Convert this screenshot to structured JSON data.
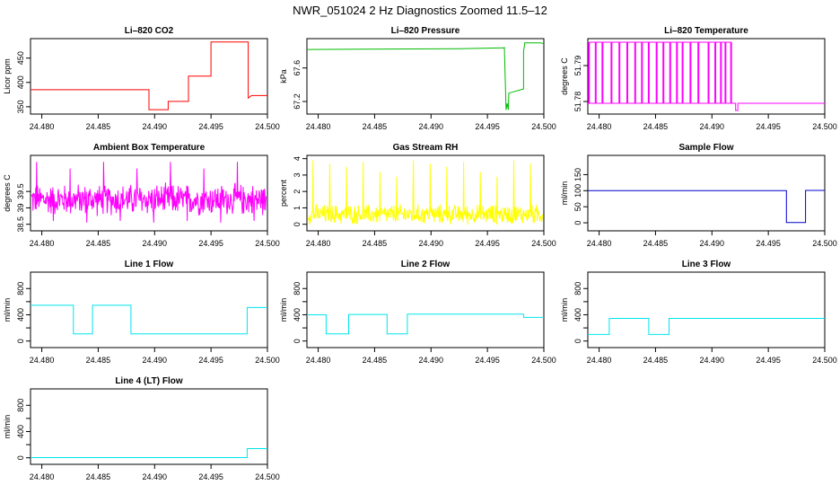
{
  "figure_title": "NWR_051024  2 Hz Diagnostics Zoomed 11.5–12",
  "chart_data": [
    {
      "type": "line",
      "title": "Li–820 CO2",
      "ylabel": "Licor ppm",
      "color": "#ff0000",
      "xlim": [
        24.479,
        24.5
      ],
      "ylim": [
        335,
        490
      ],
      "xticks": [
        24.48,
        24.485,
        24.49,
        24.495,
        24.5
      ],
      "yticks": [
        350,
        400,
        450
      ],
      "x": [
        24.479,
        24.4895,
        24.4895,
        24.4912,
        24.4912,
        24.493,
        24.493,
        24.495,
        24.495,
        24.4983,
        24.4983,
        24.4986,
        24.5
      ],
      "y": [
        385,
        385,
        344,
        344,
        361,
        361,
        413,
        413,
        483,
        483,
        368,
        373,
        373
      ]
    },
    {
      "type": "line",
      "title": "Li–820 Pressure",
      "ylabel": "kPa",
      "color": "#00bb00",
      "xlim": [
        24.479,
        24.5
      ],
      "ylim": [
        67.05,
        67.95
      ],
      "xticks": [
        24.48,
        24.485,
        24.49,
        24.495,
        24.5
      ],
      "yticks": [
        67.2,
        67.6
      ],
      "ytick_labels": [
        "67.2",
        "67.6"
      ],
      "x": [
        24.479,
        24.4925,
        24.4965,
        24.4965,
        24.49665,
        24.49675,
        24.49685,
        24.4969,
        24.4982,
        24.4982,
        24.4983,
        24.4983,
        24.4997,
        24.5
      ],
      "y": [
        67.82,
        67.83,
        67.84,
        67.85,
        67.1,
        67.18,
        67.1,
        67.3,
        67.35,
        67.8,
        67.88,
        67.9,
        67.9,
        67.89
      ]
    },
    {
      "type": "line",
      "title": "Li–820 Temperature",
      "ylabel": "degrees C",
      "color": "#ff00ff",
      "xlim": [
        24.479,
        24.5
      ],
      "ylim": [
        51.7765,
        51.7975
      ],
      "xticks": [
        24.48,
        24.485,
        24.49,
        24.495,
        24.5
      ],
      "yticks": [
        51.78,
        51.79
      ],
      "ytick_labels": [
        "51.78",
        "51.79"
      ],
      "x": [
        24.479,
        24.4921,
        24.4921,
        24.4923,
        24.4923,
        24.5
      ],
      "y": [
        51.7795,
        51.7795,
        51.7775,
        51.7775,
        51.7795,
        51.7795
      ],
      "x2": [
        24.4791,
        24.4797,
        24.4803,
        24.4811,
        24.4818,
        24.4825,
        24.4832,
        24.4838,
        24.4844,
        24.4851,
        24.4857,
        24.4863,
        24.4869,
        24.4874,
        24.4881,
        24.4888,
        24.4897,
        24.4903,
        24.4908,
        24.4912,
        24.4917
      ],
      "y2": [
        51.7965,
        51.7965,
        51.7965,
        51.7965,
        51.7965,
        51.7965,
        51.7965,
        51.7965,
        51.7965,
        51.7965,
        51.7965,
        51.7965,
        51.7965,
        51.7965,
        51.7965,
        51.7965,
        51.7965,
        51.7965,
        51.7965,
        51.7965,
        51.7965
      ]
    },
    {
      "type": "line",
      "title": "Ambient Box Temperature",
      "ylabel": "degrees C",
      "color": "#ff00ff",
      "xlim": [
        24.479,
        24.5
      ],
      "ylim": [
        38.3,
        40.6
      ],
      "xticks": [
        24.48,
        24.485,
        24.49,
        24.495,
        24.5
      ],
      "yticks": [
        38.5,
        39,
        39.5
      ],
      "ytick_labels": [
        "38.5",
        "39",
        "39.5"
      ],
      "noise": {
        "mean": 39.25,
        "amplitude": 0.55,
        "spikes": [
          40.4,
          38.6,
          40.2,
          38.55
        ]
      }
    },
    {
      "type": "line",
      "title": "Gas Stream RH",
      "ylabel": "percent",
      "color": "#ffff00",
      "xlim": [
        24.479,
        24.5
      ],
      "ylim": [
        -0.4,
        4.2
      ],
      "xticks": [
        24.48,
        24.485,
        24.49,
        24.495,
        24.5
      ],
      "yticks": [
        0,
        1,
        2,
        3,
        4
      ],
      "ytick_labels": [
        "0",
        "1",
        "2",
        "3",
        "4"
      ],
      "noise": {
        "mean": 0.6,
        "amplitude": 0.7,
        "spikes": [
          3.9,
          3.7,
          3.5,
          3.8,
          3.2,
          2.9
        ]
      }
    },
    {
      "type": "line",
      "title": "Sample Flow",
      "ylabel": "ml/min",
      "color": "#0000cc",
      "xlim": [
        24.479,
        24.5
      ],
      "ylim": [
        -25,
        210
      ],
      "xticks": [
        24.48,
        24.485,
        24.49,
        24.495,
        24.5
      ],
      "yticks": [
        0,
        50,
        100,
        150
      ],
      "ytick_labels": [
        "0",
        "50",
        "100",
        "150"
      ],
      "x": [
        24.479,
        24.4966,
        24.4966,
        24.4983,
        24.4983,
        24.5
      ],
      "y": [
        100,
        100,
        1,
        1,
        101,
        101
      ]
    },
    {
      "type": "line",
      "title": "Line 1 Flow",
      "ylabel": "ml/min",
      "color": "#00e5ee",
      "xlim": [
        24.479,
        24.5
      ],
      "ylim": [
        -100,
        1050
      ],
      "xticks": [
        24.48,
        24.485,
        24.49,
        24.495,
        24.5
      ],
      "yticks": [
        0,
        200,
        400,
        600,
        800
      ],
      "ytick_labels": [
        "0",
        "400",
        "800"
      ],
      "x": [
        24.479,
        24.4828,
        24.4828,
        24.4845,
        24.4845,
        24.4879,
        24.4879,
        24.4982,
        24.4982,
        24.5
      ],
      "y": [
        545,
        545,
        110,
        110,
        545,
        545,
        110,
        110,
        510,
        510
      ]
    },
    {
      "type": "line",
      "title": "Line 2 Flow",
      "ylabel": "ml/min",
      "color": "#00e5ee",
      "xlim": [
        24.479,
        24.5
      ],
      "ylim": [
        -100,
        1050
      ],
      "xticks": [
        24.48,
        24.485,
        24.49,
        24.495,
        24.5
      ],
      "yticks": [
        0,
        200,
        400,
        600,
        800
      ],
      "ytick_labels": [
        "0",
        "400",
        "800"
      ],
      "x": [
        24.479,
        24.4807,
        24.4807,
        24.4827,
        24.4827,
        24.4861,
        24.4861,
        24.4879,
        24.4879,
        24.4982,
        24.4982,
        24.5
      ],
      "y": [
        400,
        400,
        110,
        110,
        405,
        405,
        110,
        110,
        410,
        410,
        360,
        360
      ]
    },
    {
      "type": "line",
      "title": "Line 3 Flow",
      "ylabel": "ml/min",
      "color": "#00e5ee",
      "xlim": [
        24.479,
        24.5
      ],
      "ylim": [
        -100,
        1050
      ],
      "xticks": [
        24.48,
        24.485,
        24.49,
        24.495,
        24.5
      ],
      "yticks": [
        0,
        200,
        400,
        600,
        800
      ],
      "ytick_labels": [
        "0",
        "400",
        "800"
      ],
      "x": [
        24.479,
        24.4809,
        24.4809,
        24.4844,
        24.4844,
        24.4862,
        24.4862,
        24.5
      ],
      "y": [
        100,
        100,
        345,
        345,
        100,
        100,
        345,
        345
      ]
    },
    {
      "type": "line",
      "title": "Line 4 (LT) Flow",
      "ylabel": "ml/min",
      "color": "#00e5ee",
      "xlim": [
        24.479,
        24.5
      ],
      "ylim": [
        -100,
        1050
      ],
      "xticks": [
        24.48,
        24.485,
        24.49,
        24.495,
        24.5
      ],
      "yticks": [
        0,
        200,
        400,
        600,
        800
      ],
      "ytick_labels": [
        "0",
        "400",
        "800"
      ],
      "x": [
        24.479,
        24.4982,
        24.4982,
        24.5
      ],
      "y": [
        3,
        3,
        140,
        140
      ]
    }
  ],
  "xtick_labels": [
    "24.480",
    "24.485",
    "24.490",
    "24.495",
    "24.500"
  ]
}
